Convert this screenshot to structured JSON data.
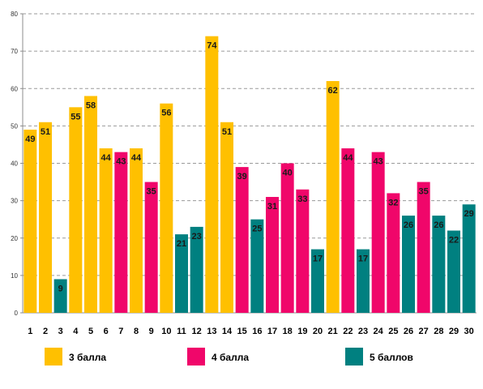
{
  "chart_data": {
    "type": "bar",
    "title": "",
    "xlabel": "",
    "ylabel": "",
    "ylim": [
      0,
      80
    ],
    "yticks": [
      0,
      10,
      20,
      30,
      40,
      50,
      60,
      70,
      80
    ],
    "grid": "horizontal dashed",
    "legend_position": "bottom",
    "categories": [
      "1",
      "2",
      "3",
      "4",
      "5",
      "6",
      "7",
      "8",
      "9",
      "10",
      "11",
      "12",
      "13",
      "14",
      "15",
      "16",
      "17",
      "18",
      "19",
      "20",
      "21",
      "22",
      "23",
      "24",
      "25",
      "26",
      "27",
      "28",
      "29",
      "30"
    ],
    "values": [
      49,
      51,
      9,
      55,
      58,
      44,
      43,
      44,
      35,
      56,
      21,
      23,
      74,
      51,
      39,
      25,
      31,
      40,
      33,
      17,
      62,
      44,
      17,
      43,
      32,
      26,
      35,
      26,
      22,
      29
    ],
    "groups": [
      "g3",
      "g3",
      "g5",
      "g3",
      "g3",
      "g3",
      "g4",
      "g3",
      "g4",
      "g3",
      "g5",
      "g5",
      "g3",
      "g3",
      "g4",
      "g5",
      "g4",
      "g4",
      "g4",
      "g5",
      "g3",
      "g4",
      "g5",
      "g4",
      "g4",
      "g5",
      "g4",
      "g5",
      "g5",
      "g5"
    ],
    "series": [
      {
        "key": "g3",
        "name": "3 балла",
        "color": "#FFC000"
      },
      {
        "key": "g4",
        "name": "4 балла",
        "color": "#F0066A"
      },
      {
        "key": "g5",
        "name": "5 баллов",
        "color": "#008080"
      }
    ]
  }
}
